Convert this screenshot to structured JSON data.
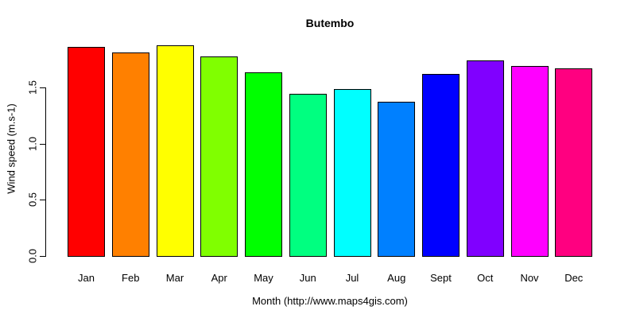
{
  "chart_data": {
    "type": "bar",
    "title": "Butembo",
    "xlabel": "Month (http://www.maps4gis.com)",
    "ylabel": "Wind speed (m.s-1)",
    "categories": [
      "Jan",
      "Feb",
      "Mar",
      "Apr",
      "May",
      "Jun",
      "Jul",
      "Aug",
      "Sept",
      "Oct",
      "Nov",
      "Dec"
    ],
    "values": [
      1.87,
      1.82,
      1.88,
      1.78,
      1.64,
      1.45,
      1.49,
      1.38,
      1.63,
      1.75,
      1.7,
      1.68
    ],
    "bar_colors": [
      "#FF0000",
      "#FF8000",
      "#FFFF00",
      "#80FF00",
      "#00FF00",
      "#00FF80",
      "#00FFFF",
      "#0080FF",
      "#0000FF",
      "#8000FF",
      "#FF00FF",
      "#FF0080"
    ],
    "bar_border_color": "#000000",
    "yticks": [
      0.0,
      0.5,
      1.0,
      1.5
    ],
    "ytick_labels": [
      "0.0",
      "0.5",
      "1.0",
      "1.5"
    ],
    "ylim": [
      0,
      1.9
    ],
    "grid": false,
    "legend": false,
    "background_color": "#FFFFFF",
    "text_color": "#000000"
  }
}
